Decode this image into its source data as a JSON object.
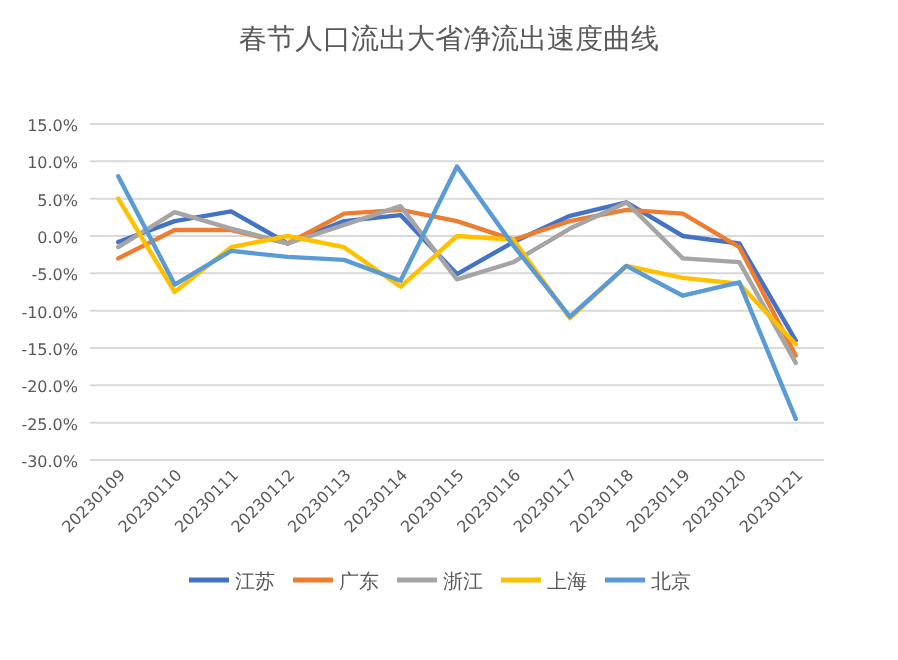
{
  "chart_data": {
    "type": "line",
    "title": "春节人口流出大省净流出速度曲线",
    "categories": [
      "20230109",
      "20230110",
      "20230111",
      "20230112",
      "20230113",
      "20230114",
      "20230115",
      "20230116",
      "20230117",
      "20230118",
      "20230119",
      "20230120",
      "20230121"
    ],
    "series": [
      {
        "name": "江苏",
        "color": "#4472c4",
        "values": [
          -0.8,
          2,
          3.3,
          -1,
          2,
          2.8,
          -5.1,
          -0.8,
          2.7,
          4.5,
          0,
          -1,
          -14
        ]
      },
      {
        "name": "广东",
        "color": "#ed7d31",
        "values": [
          -3,
          0.8,
          0.8,
          -1,
          3,
          3.5,
          2,
          -0.5,
          2,
          3.5,
          3,
          -1.5,
          -16
        ]
      },
      {
        "name": "浙江",
        "color": "#a5a5a5",
        "values": [
          -1.5,
          3.2,
          1,
          -1,
          1.5,
          4,
          -5.8,
          -3.5,
          1,
          4.5,
          -3,
          -3.5,
          -17
        ]
      },
      {
        "name": "上海",
        "color": "#ffc000",
        "values": [
          5,
          -7.5,
          -1.5,
          0,
          -1.5,
          -6.8,
          0,
          -0.5,
          -11,
          -4,
          -5.6,
          -6.4,
          -14.5
        ]
      },
      {
        "name": "北京",
        "color": "#5b9bd5",
        "values": [
          8,
          -6.5,
          -2,
          -2.8,
          -3.2,
          -6,
          9.3,
          -1.3,
          -10.8,
          -4,
          -8,
          -6.2,
          -24.5
        ]
      }
    ],
    "ylim": [
      -30,
      15
    ],
    "yticks": [
      {
        "value": -30,
        "label": "-30.0%"
      },
      {
        "value": -25,
        "label": "-25.0%"
      },
      {
        "value": -20,
        "label": "-20.0%"
      },
      {
        "value": -15,
        "label": "-15.0%"
      },
      {
        "value": -10,
        "label": "-10.0%"
      },
      {
        "value": -5,
        "label": "-5.0%"
      },
      {
        "value": 0,
        "label": "0.0%"
      },
      {
        "value": 5,
        "label": "5.0%"
      },
      {
        "value": 10,
        "label": "10.0%"
      },
      {
        "value": 15,
        "label": "15.0%"
      }
    ],
    "grid": "y",
    "legend": "bottom",
    "marker": "none",
    "line_style": "solid"
  }
}
